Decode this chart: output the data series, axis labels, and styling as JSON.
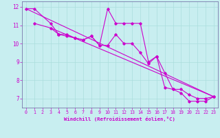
{
  "xlabel": "Windchill (Refroidissement éolien,°C)",
  "bg_color": "#c8eef0",
  "line_color": "#cc00cc",
  "grid_color": "#aadddd",
  "axis_color": "#7777aa",
  "tick_color": "#cc00cc",
  "xlim": [
    -0.5,
    23.5
  ],
  "ylim": [
    6.5,
    12.3
  ],
  "yticks": [
    7,
    8,
    9,
    10,
    11,
    12
  ],
  "xticks": [
    0,
    1,
    2,
    3,
    4,
    5,
    6,
    7,
    8,
    9,
    10,
    11,
    12,
    13,
    14,
    15,
    16,
    17,
    18,
    19,
    20,
    21,
    22,
    23
  ],
  "series1_x": [
    0,
    1,
    3,
    4,
    4,
    5,
    6,
    7,
    8,
    9,
    10,
    11,
    12,
    13,
    14,
    15,
    16,
    17,
    18,
    19,
    20,
    21,
    22,
    23
  ],
  "series1_y": [
    11.9,
    11.9,
    11.1,
    10.5,
    10.5,
    10.5,
    10.3,
    10.2,
    10.4,
    9.9,
    11.9,
    11.1,
    11.1,
    11.1,
    11.1,
    9.0,
    9.3,
    7.6,
    7.5,
    7.3,
    6.85,
    6.85,
    6.85,
    7.1
  ],
  "series2_x": [
    1,
    3,
    4,
    5,
    6,
    7,
    8,
    9,
    10,
    11,
    12,
    13,
    14,
    15,
    16,
    17,
    18,
    19,
    20,
    21,
    22,
    23
  ],
  "series2_y": [
    11.1,
    10.85,
    10.5,
    10.4,
    10.3,
    10.2,
    10.4,
    9.9,
    9.9,
    10.5,
    10.0,
    10.0,
    9.5,
    8.9,
    9.3,
    8.4,
    7.5,
    7.5,
    7.2,
    7.0,
    7.0,
    7.1
  ],
  "series3_x": [
    0,
    23
  ],
  "series3_y": [
    11.9,
    7.1
  ],
  "series4_x": [
    3,
    23
  ],
  "series4_y": [
    10.85,
    7.1
  ]
}
